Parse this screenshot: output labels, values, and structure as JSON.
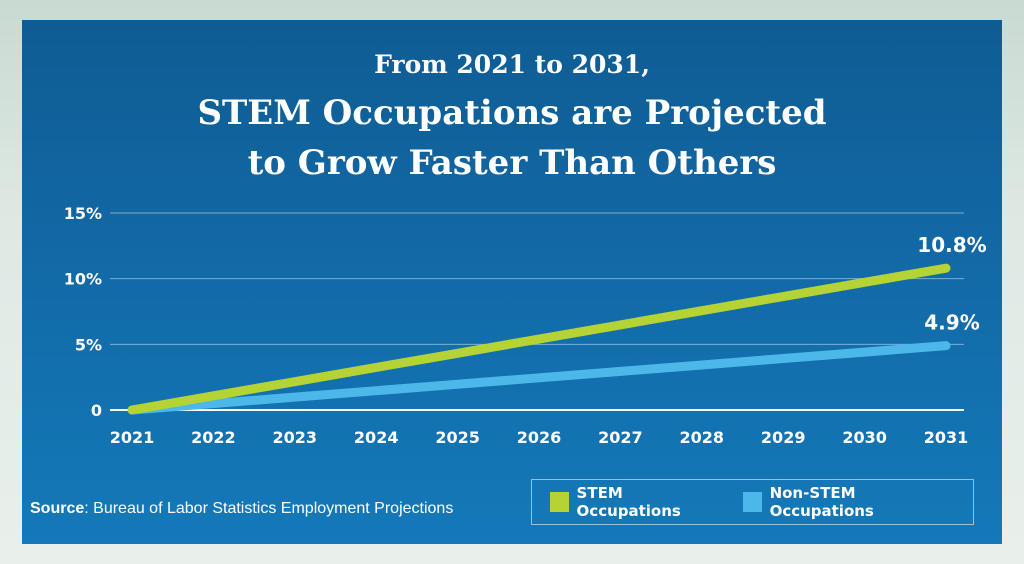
{
  "header": {
    "title_line1": "From 2021 to 2031,",
    "title_line2": "STEM Occupations are Projected",
    "title_line3": "to Grow Faster Than Others"
  },
  "source": {
    "label": "Source",
    "text": ": Bureau of Labor Statistics Employment Projections"
  },
  "colors": {
    "stem": "#b5d334",
    "non_stem": "#4cb8ea",
    "background": "#1269a6",
    "grid": "#ffffff"
  },
  "chart_data": {
    "type": "line",
    "title": "From 2021 to 2031, STEM Occupations are Projected to Grow Faster Than Others",
    "x": [
      "2021",
      "2022",
      "2023",
      "2024",
      "2025",
      "2026",
      "2027",
      "2028",
      "2029",
      "2030",
      "2031"
    ],
    "series": [
      {
        "name": "STEM Occupations",
        "color": "#b5d334",
        "values": [
          0,
          1.08,
          2.16,
          3.24,
          4.32,
          5.4,
          6.48,
          7.56,
          8.64,
          9.72,
          10.8
        ],
        "end_label": "10.8%"
      },
      {
        "name": "Non-STEM Occupations",
        "color": "#4cb8ea",
        "values": [
          0,
          0.49,
          0.98,
          1.47,
          1.96,
          2.45,
          2.94,
          3.43,
          3.92,
          4.41,
          4.9
        ],
        "end_label": "4.9%"
      }
    ],
    "y_ticks": [
      "0",
      "5%",
      "10%",
      "15%"
    ],
    "y_tick_values": [
      0,
      5,
      10,
      15
    ],
    "ylim": [
      0,
      15
    ],
    "grid": true,
    "legend": "bottom-right",
    "xlabel": "",
    "ylabel": ""
  }
}
